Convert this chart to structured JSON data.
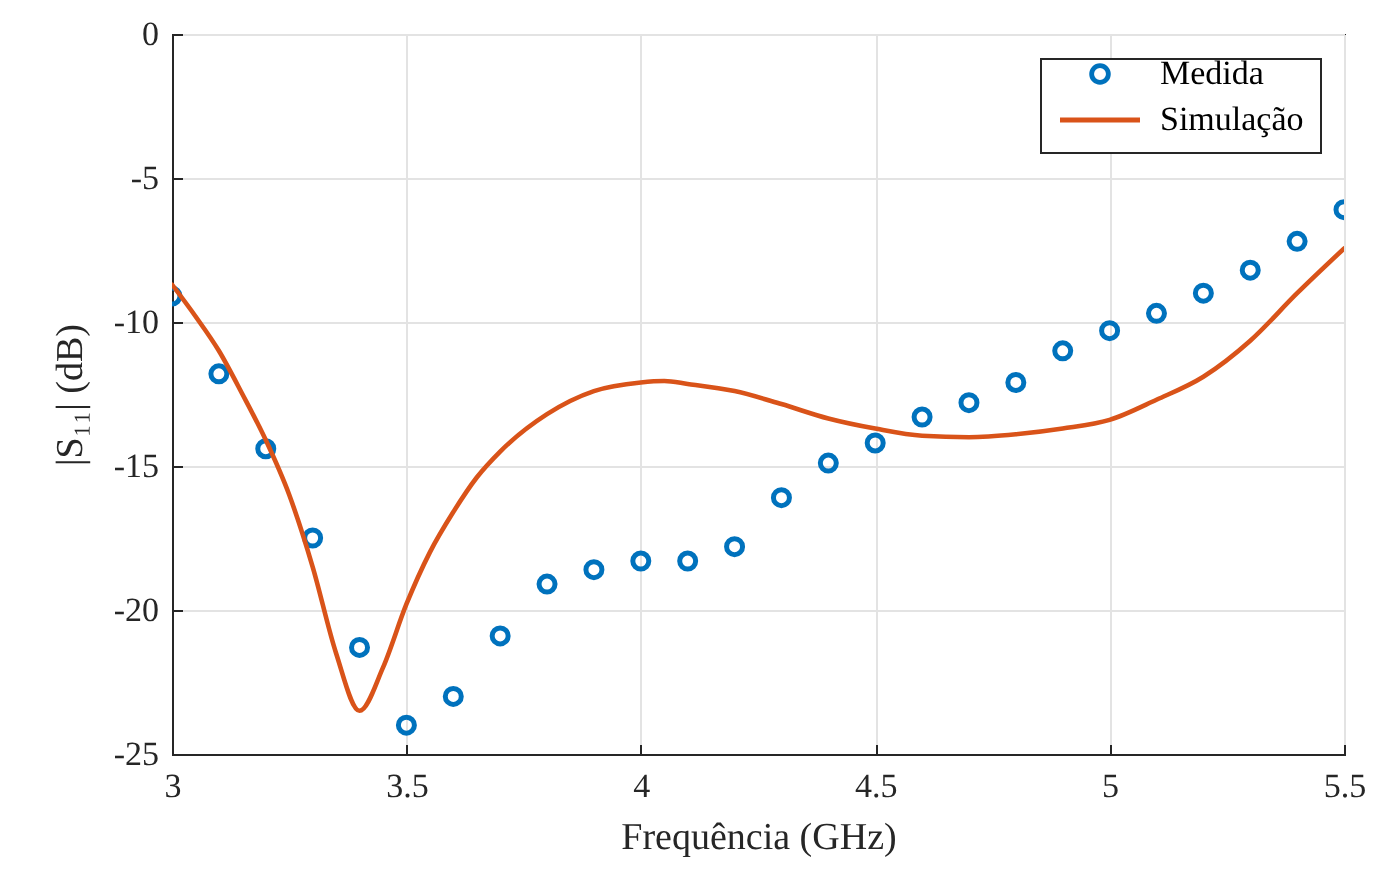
{
  "chart_data": {
    "type": "line",
    "xlabel": "Frequência (GHz)",
    "ylabel": "|S₁₁| (dB)",
    "xlim": [
      3,
      5.5
    ],
    "ylim": [
      -25,
      0
    ],
    "xticks": [
      3,
      3.5,
      4,
      4.5,
      5,
      5.5
    ],
    "yticks": [
      -25,
      -20,
      -15,
      -10,
      -5,
      0
    ],
    "grid": true,
    "legend": "top right",
    "series": [
      {
        "name": "Medida",
        "type": "scatter",
        "marker": "circle",
        "color": "#0072bd",
        "x": [
          3,
          3.1,
          3.2,
          3.3,
          3.4,
          3.5,
          3.6,
          3.7,
          3.8,
          3.9,
          4,
          4.1,
          4.2,
          4.3,
          4.4,
          4.5,
          4.6,
          4.7,
          4.8,
          4.9,
          5,
          5.1,
          5.2,
          5.3,
          5.4,
          5.5
        ],
        "values": [
          -9.1,
          -11.8,
          -14.4,
          -17.5,
          -21.3,
          -24.0,
          -23.0,
          -20.9,
          -19.1,
          -18.6,
          -18.3,
          -18.3,
          -17.8,
          -16.1,
          -14.9,
          -14.2,
          -13.3,
          -12.8,
          -12.1,
          -11.0,
          -10.3,
          -9.7,
          -9.0,
          -8.2,
          -7.2,
          -6.1
        ]
      },
      {
        "name": "Simulação",
        "type": "line",
        "color": "#d95319",
        "x": [
          3,
          3.05,
          3.1,
          3.15,
          3.2,
          3.25,
          3.3,
          3.35,
          3.4,
          3.45,
          3.5,
          3.55,
          3.6,
          3.65,
          3.7,
          3.8,
          3.9,
          4,
          4.05,
          4.1,
          4.2,
          4.3,
          4.4,
          4.5,
          4.6,
          4.7,
          4.8,
          4.9,
          5,
          5.1,
          5.2,
          5.3,
          5.4,
          5.5
        ],
        "values": [
          -8.7,
          -9.8,
          -11.0,
          -12.5,
          -14.1,
          -16.0,
          -18.5,
          -21.5,
          -23.5,
          -22.0,
          -19.8,
          -18.0,
          -16.6,
          -15.4,
          -14.5,
          -13.2,
          -12.4,
          -12.1,
          -12.05,
          -12.15,
          -12.4,
          -12.85,
          -13.35,
          -13.7,
          -13.95,
          -14.0,
          -13.9,
          -13.7,
          -13.4,
          -12.7,
          -11.9,
          -10.65,
          -9.0,
          -7.45
        ]
      }
    ]
  }
}
